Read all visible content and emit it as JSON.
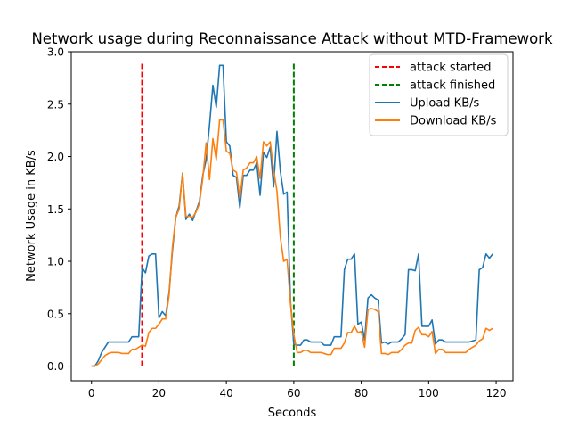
{
  "chart_data": {
    "type": "line",
    "title": "Network usage during Reconnaissance Attack without MTD-Framework",
    "xlabel": "Seconds",
    "ylabel": "Network Usage in KB/s",
    "xlim": [
      -6,
      125
    ],
    "ylim": [
      -0.14,
      3.0
    ],
    "xticks": [
      0,
      20,
      40,
      60,
      80,
      100,
      120
    ],
    "yticks": [
      0.0,
      0.5,
      1.0,
      1.5,
      2.0,
      2.5,
      3.0
    ],
    "xtick_labels": [
      "0",
      "20",
      "40",
      "60",
      "80",
      "100",
      "120"
    ],
    "ytick_labels": [
      "0.0",
      "0.5",
      "1.0",
      "1.5",
      "2.0",
      "2.5",
      "3.0"
    ],
    "grid": false,
    "legend_position": "top-right",
    "vlines": [
      {
        "name": "attack started",
        "x": 15,
        "ymin": 0,
        "ymax": 2.9,
        "color": "#ff0000",
        "style": "dashed"
      },
      {
        "name": "attack finished",
        "x": 60,
        "ymin": 0,
        "ymax": 2.9,
        "color": "#008000",
        "style": "dashed"
      }
    ],
    "series": [
      {
        "name": "Upload KB/s",
        "color": "#1f77b4",
        "x": [
          0,
          1,
          2,
          3,
          4,
          5,
          6,
          7,
          8,
          9,
          10,
          11,
          12,
          13,
          14,
          15,
          16,
          17,
          18,
          19,
          20,
          21,
          22,
          23,
          24,
          25,
          26,
          27,
          28,
          29,
          30,
          31,
          32,
          33,
          34,
          35,
          36,
          37,
          38,
          39,
          40,
          41,
          42,
          43,
          44,
          45,
          46,
          47,
          48,
          49,
          50,
          51,
          52,
          53,
          54,
          55,
          56,
          57,
          58,
          59,
          60,
          61,
          62,
          63,
          64,
          65,
          66,
          67,
          68,
          69,
          70,
          71,
          72,
          73,
          74,
          75,
          76,
          77,
          78,
          79,
          80,
          81,
          82,
          83,
          84,
          85,
          86,
          87,
          88,
          89,
          90,
          91,
          92,
          93,
          94,
          95,
          96,
          97,
          98,
          99,
          100,
          101,
          102,
          103,
          104,
          105,
          106,
          107,
          108,
          109,
          110,
          111,
          112,
          113,
          114,
          115,
          116,
          117,
          118,
          119
        ],
        "values": [
          0.0,
          0.0,
          0.05,
          0.13,
          0.18,
          0.23,
          0.23,
          0.23,
          0.23,
          0.23,
          0.23,
          0.23,
          0.28,
          0.28,
          0.28,
          0.94,
          0.89,
          1.05,
          1.07,
          1.07,
          0.46,
          0.52,
          0.48,
          0.7,
          1.1,
          1.42,
          1.53,
          1.84,
          1.4,
          1.45,
          1.39,
          1.48,
          1.57,
          1.82,
          1.97,
          2.3,
          2.68,
          2.47,
          2.87,
          2.87,
          2.14,
          2.1,
          1.82,
          1.8,
          1.51,
          1.82,
          1.82,
          1.87,
          1.87,
          1.94,
          1.63,
          2.04,
          1.99,
          2.09,
          1.71,
          2.24,
          1.86,
          1.64,
          1.66,
          0.63,
          0.21,
          0.2,
          0.2,
          0.25,
          0.25,
          0.23,
          0.23,
          0.23,
          0.23,
          0.2,
          0.2,
          0.2,
          0.28,
          0.28,
          0.28,
          0.92,
          1.02,
          1.02,
          1.07,
          0.4,
          0.42,
          0.25,
          0.65,
          0.68,
          0.65,
          0.63,
          0.22,
          0.23,
          0.21,
          0.23,
          0.23,
          0.23,
          0.26,
          0.3,
          0.92,
          0.92,
          0.91,
          1.07,
          0.38,
          0.38,
          0.38,
          0.44,
          0.21,
          0.25,
          0.25,
          0.23,
          0.23,
          0.23,
          0.23,
          0.23,
          0.23,
          0.23,
          0.23,
          0.24,
          0.25,
          0.92,
          0.94,
          1.07,
          1.03,
          1.07
        ]
      },
      {
        "name": "Download KB/s",
        "color": "#ff7f0e",
        "x": [
          0,
          1,
          2,
          3,
          4,
          5,
          6,
          7,
          8,
          9,
          10,
          11,
          12,
          13,
          14,
          15,
          16,
          17,
          18,
          19,
          20,
          21,
          22,
          23,
          24,
          25,
          26,
          27,
          28,
          29,
          30,
          31,
          32,
          33,
          34,
          35,
          36,
          37,
          38,
          39,
          40,
          41,
          42,
          43,
          44,
          45,
          46,
          47,
          48,
          49,
          50,
          51,
          52,
          53,
          54,
          55,
          56,
          57,
          58,
          59,
          60,
          61,
          62,
          63,
          64,
          65,
          66,
          67,
          68,
          69,
          70,
          71,
          72,
          73,
          74,
          75,
          76,
          77,
          78,
          79,
          80,
          81,
          82,
          83,
          84,
          85,
          86,
          87,
          88,
          89,
          90,
          91,
          92,
          93,
          94,
          95,
          96,
          97,
          98,
          99,
          100,
          101,
          102,
          103,
          104,
          105,
          106,
          107,
          108,
          109,
          110,
          111,
          112,
          113,
          114,
          115,
          116,
          117,
          118,
          119
        ],
        "values": [
          0.0,
          0.0,
          0.02,
          0.06,
          0.1,
          0.12,
          0.13,
          0.13,
          0.13,
          0.12,
          0.12,
          0.12,
          0.16,
          0.16,
          0.18,
          0.2,
          0.19,
          0.32,
          0.36,
          0.36,
          0.4,
          0.45,
          0.45,
          0.67,
          1.14,
          1.42,
          1.5,
          1.84,
          1.43,
          1.43,
          1.42,
          1.47,
          1.55,
          1.79,
          2.13,
          1.78,
          2.17,
          1.97,
          2.35,
          2.35,
          2.05,
          2.03,
          1.87,
          1.85,
          1.6,
          1.87,
          1.89,
          1.94,
          1.94,
          2.0,
          1.79,
          2.14,
          2.1,
          2.14,
          1.87,
          1.67,
          1.23,
          1.0,
          1.02,
          0.6,
          0.3,
          0.13,
          0.13,
          0.15,
          0.15,
          0.13,
          0.13,
          0.13,
          0.13,
          0.12,
          0.11,
          0.11,
          0.17,
          0.17,
          0.17,
          0.22,
          0.32,
          0.32,
          0.38,
          0.32,
          0.33,
          0.18,
          0.54,
          0.55,
          0.54,
          0.52,
          0.12,
          0.12,
          0.11,
          0.13,
          0.13,
          0.13,
          0.16,
          0.2,
          0.22,
          0.22,
          0.34,
          0.37,
          0.3,
          0.3,
          0.28,
          0.33,
          0.12,
          0.16,
          0.16,
          0.13,
          0.13,
          0.13,
          0.13,
          0.13,
          0.13,
          0.13,
          0.16,
          0.18,
          0.2,
          0.24,
          0.26,
          0.36,
          0.34,
          0.36
        ]
      }
    ]
  }
}
